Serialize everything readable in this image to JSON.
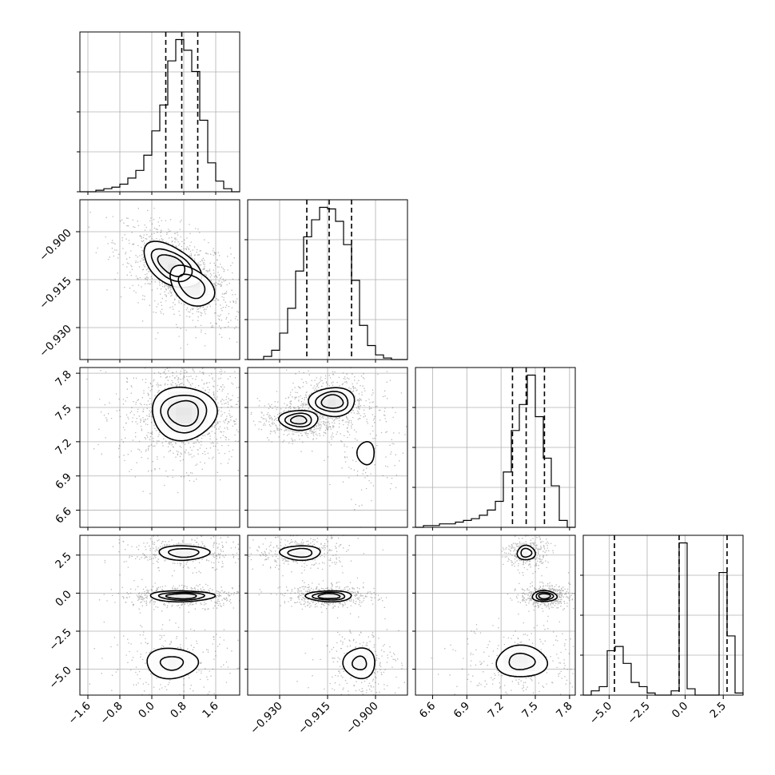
{
  "chart_data": {
    "type": "corner",
    "title": "",
    "xlabel": "",
    "ylabel": "",
    "grid": true,
    "parameters": [
      {
        "index": 0,
        "range": [
          -1.8,
          2.2
        ],
        "ticks": [
          -1.6,
          -0.8,
          0.0,
          0.8,
          1.6
        ],
        "tick_labels": [
          "−1.6",
          "−0.8",
          "0.0",
          "0.8",
          "1.6"
        ],
        "quantiles": [
          0.35,
          0.75,
          1.15
        ]
      },
      {
        "index": 1,
        "range": [
          -0.94,
          -0.89
        ],
        "ticks": [
          -0.93,
          -0.915,
          -0.9
        ],
        "tick_labels": [
          "−0.930",
          "−0.915",
          "−0.900"
        ],
        "quantiles": [
          -0.9215,
          -0.9145,
          -0.9075
        ]
      },
      {
        "index": 2,
        "range": [
          6.45,
          7.85
        ],
        "ticks": [
          6.6,
          6.9,
          7.2,
          7.5,
          7.8
        ],
        "tick_labels": [
          "6.6",
          "6.9",
          "7.2",
          "7.5",
          "7.8"
        ],
        "quantiles": [
          7.3,
          7.42,
          7.58
        ]
      },
      {
        "index": 3,
        "range": [
          -6.7,
          3.8
        ],
        "ticks": [
          -5.0,
          -2.5,
          0.0,
          2.5
        ],
        "tick_labels": [
          "−5.0",
          "−2.5",
          "0.0",
          "2.5"
        ],
        "quantiles": [
          -4.65,
          -0.4,
          2.75
        ]
      }
    ],
    "histograms": [
      {
        "param": 0,
        "bin_edges": [
          -1.8,
          -1.6,
          -1.4,
          -1.2,
          -1.0,
          -0.8,
          -0.6,
          -0.4,
          -0.2,
          0.0,
          0.2,
          0.4,
          0.6,
          0.8,
          1.0,
          1.2,
          1.4,
          1.6,
          1.8,
          2.0,
          2.2
        ],
        "counts": [
          0,
          0,
          1,
          2,
          3,
          5,
          9,
          14,
          24,
          40,
          57,
          86,
          100,
          93,
          79,
          47,
          19,
          7,
          2,
          0
        ]
      },
      {
        "param": 1,
        "bin_edges": [
          -0.94,
          -0.9375,
          -0.935,
          -0.9325,
          -0.93,
          -0.9275,
          -0.925,
          -0.9225,
          -0.92,
          -0.9175,
          -0.915,
          -0.9125,
          -0.91,
          -0.9075,
          -0.905,
          -0.9025,
          -0.9,
          -0.8975,
          -0.895,
          -0.8925,
          -0.89
        ],
        "counts": [
          0,
          0,
          2,
          6,
          17,
          33,
          57,
          79,
          90,
          98,
          97,
          89,
          74,
          51,
          22,
          9,
          3,
          1,
          0,
          0
        ]
      },
      {
        "param": 2,
        "bin_edges": [
          6.45,
          6.52,
          6.59,
          6.66,
          6.73,
          6.8,
          6.87,
          6.94,
          7.01,
          7.08,
          7.15,
          7.22,
          7.29,
          7.36,
          7.43,
          7.5,
          7.57,
          7.64,
          7.71,
          7.78,
          7.85
        ],
        "counts": [
          0,
          1,
          1,
          2,
          2,
          3,
          4,
          5,
          7,
          10,
          15,
          32,
          56,
          71,
          88,
          64,
          40,
          24,
          4,
          0
        ]
      },
      {
        "param": 3,
        "bin_edges": [
          -6.7,
          -6.175,
          -5.65,
          -5.125,
          -4.6,
          -4.075,
          -3.55,
          -3.025,
          -2.5,
          -1.975,
          -1.45,
          -0.925,
          -0.4,
          0.125,
          0.65,
          1.175,
          1.7,
          2.225,
          2.75,
          3.275,
          3.8
        ],
        "counts": [
          0,
          2,
          4,
          21,
          23,
          15,
          6,
          4,
          1,
          0,
          0,
          2,
          72,
          3,
          0,
          0,
          0,
          58,
          28,
          1
        ]
      }
    ],
    "density_panels": [
      {
        "x_param": 0,
        "y_param": 1,
        "modes": [
          {
            "x": 0.5,
            "y": -0.9105,
            "sx": 0.4,
            "sy": 0.004,
            "rho": -0.5,
            "w": 1.0
          },
          {
            "x": 1.0,
            "y": -0.917,
            "sx": 0.35,
            "sy": 0.004,
            "rho": -0.4,
            "w": 0.7
          }
        ]
      },
      {
        "x_param": 0,
        "y_param": 2,
        "modes": [
          {
            "x": 0.8,
            "y": 7.45,
            "sx": 0.45,
            "sy": 0.13,
            "rho": 0.0,
            "w": 1.0
          }
        ]
      },
      {
        "x_param": 1,
        "y_param": 2,
        "modes": [
          {
            "x": -0.924,
            "y": 7.39,
            "sx": 0.0035,
            "sy": 0.05,
            "rho": 0.0,
            "w": 0.9
          },
          {
            "x": -0.9135,
            "y": 7.55,
            "sx": 0.004,
            "sy": 0.07,
            "rho": 0.0,
            "w": 1.0
          },
          {
            "x": -0.903,
            "y": 7.1,
            "sx": 0.004,
            "sy": 0.15,
            "rho": 0.0,
            "w": 0.25
          }
        ]
      },
      {
        "x_param": 0,
        "y_param": 3,
        "modes": [
          {
            "x": 0.8,
            "y": 2.65,
            "sx": 0.4,
            "sy": 0.3,
            "rho": 0.0,
            "w": 0.7
          },
          {
            "x": 0.75,
            "y": -0.2,
            "sx": 0.45,
            "sy": 0.2,
            "rho": 0.0,
            "w": 1.0
          },
          {
            "x": 0.5,
            "y": -4.6,
            "sx": 0.45,
            "sy": 0.7,
            "rho": 0.0,
            "w": 0.55
          }
        ]
      },
      {
        "x_param": 1,
        "y_param": 3,
        "modes": [
          {
            "x": -0.9235,
            "y": 2.65,
            "sx": 0.004,
            "sy": 0.3,
            "rho": 0.0,
            "w": 0.7
          },
          {
            "x": -0.9145,
            "y": -0.2,
            "sx": 0.004,
            "sy": 0.2,
            "rho": 0.0,
            "w": 1.0
          },
          {
            "x": -0.905,
            "y": -4.6,
            "sx": 0.0035,
            "sy": 0.7,
            "rho": 0.0,
            "w": 0.55
          }
        ]
      },
      {
        "x_param": 2,
        "y_param": 3,
        "modes": [
          {
            "x": 7.42,
            "y": 2.65,
            "sx": 0.05,
            "sy": 0.3,
            "rho": 0.0,
            "w": 0.7
          },
          {
            "x": 7.58,
            "y": -0.2,
            "sx": 0.06,
            "sy": 0.2,
            "rho": 0.0,
            "w": 1.0
          },
          {
            "x": 7.38,
            "y": -4.5,
            "sx": 0.15,
            "sy": 0.7,
            "rho": 0.0,
            "w": 0.6
          }
        ]
      }
    ]
  }
}
